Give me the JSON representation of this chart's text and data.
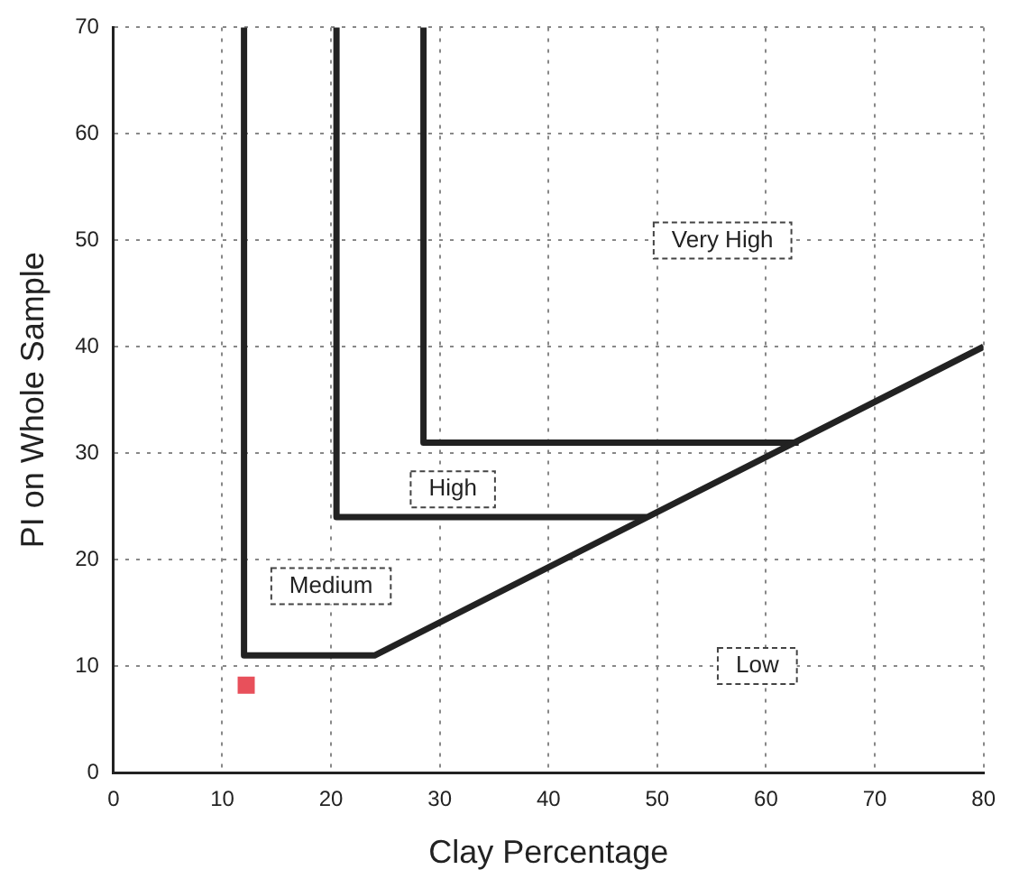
{
  "chart_data": {
    "type": "line",
    "xlabel": "Clay Percentage",
    "ylabel": "PI on Whole Sample",
    "xlim": [
      0,
      80
    ],
    "xticks": [
      0,
      10,
      20,
      30,
      40,
      50,
      60,
      70,
      80
    ],
    "ylim": [
      0,
      70
    ],
    "yticks": [
      0,
      10,
      20,
      30,
      40,
      50,
      60,
      70
    ],
    "grid": true,
    "legend": false,
    "line_style": "solid",
    "series": [
      {
        "color": "#222222",
        "marker": "none",
        "x": [
          12,
          12,
          24,
          80
        ],
        "values": [
          70,
          11,
          11,
          40
        ]
      },
      {
        "color": "#222222",
        "marker": "none",
        "x": [
          20.5,
          20.5,
          49
        ],
        "values": [
          70,
          24,
          24
        ]
      },
      {
        "color": "#222222",
        "marker": "none",
        "x": [
          28.5,
          28.5,
          63
        ],
        "values": [
          70,
          31,
          31
        ]
      },
      {
        "type": "scatter",
        "color": "#e8505b",
        "marker": "square",
        "x": [
          12.2
        ],
        "values": [
          8.2
        ]
      }
    ],
    "annotations": [
      "Very High",
      "High",
      "Medium",
      "Low"
    ]
  }
}
